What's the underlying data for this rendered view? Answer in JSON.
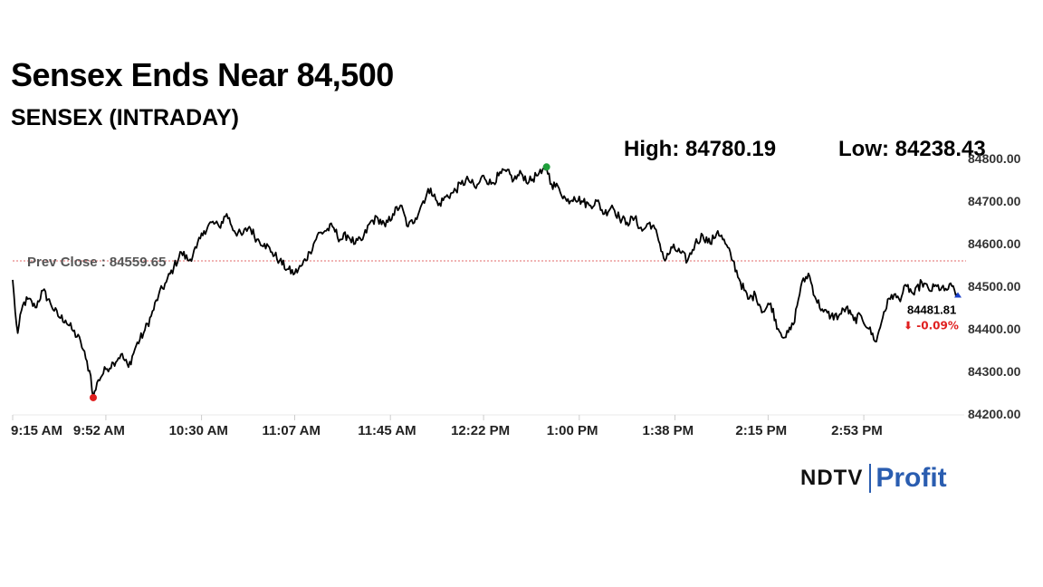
{
  "title": "Sensex Ends Near 84,500",
  "subtitle": "SENSEX (INTRADAY)",
  "high_text": "High: 84780.19",
  "low_text": "Low: 84238.43",
  "brand": {
    "ndtv": "NDTV",
    "profit": "Profit",
    "color": "#2a5db0"
  },
  "colors": {
    "line": "#000000",
    "prev_close_line": "#e06a6a",
    "high_marker": "#1e9e3a",
    "low_marker": "#e02020",
    "last_marker": "#1a3fc8",
    "change_negative": "#e02020"
  },
  "chart_data": {
    "type": "line",
    "title": "SENSEX (INTRADAY)",
    "ylim": [
      84200,
      84800
    ],
    "y_ticks": [
      84200,
      84300,
      84400,
      84500,
      84600,
      84700,
      84800
    ],
    "y_tick_labels": [
      "84200.00",
      "84300.00",
      "84400.00",
      "84500.00",
      "84600.00",
      "84700.00",
      "84800.00"
    ],
    "x_tick_labels": [
      "9:15 AM",
      "9:52 AM",
      "10:30 AM",
      "11:07 AM",
      "11:45 AM",
      "12:22 PM",
      "1:00 PM",
      "1:38 PM",
      "2:15 PM",
      "2:53 PM"
    ],
    "x_tick_minutes": [
      555,
      592,
      630,
      667,
      705,
      742,
      780,
      818,
      855,
      893
    ],
    "x_range_minutes": [
      555,
      930
    ],
    "prev_close": 84559.65,
    "prev_close_label": "Prev Close : 84559.65",
    "high": {
      "value": 84780.19,
      "minute": 767
    },
    "low": {
      "value": 84238.43,
      "minute": 587
    },
    "last": {
      "value": 84481.81,
      "minute": 930,
      "label": "84481.81",
      "change": "⬇ -0.09%"
    },
    "grid": false,
    "series": [
      {
        "minutes": [
          555,
          556,
          557,
          559,
          561,
          564,
          567,
          570,
          573,
          576,
          579,
          582,
          584,
          586,
          587,
          589,
          592,
          595,
          598,
          601,
          604,
          607,
          610,
          613,
          616,
          619,
          622,
          625,
          628,
          631,
          634,
          637,
          640,
          643,
          646,
          649,
          652,
          655,
          658,
          661,
          664,
          667,
          670,
          673,
          676,
          679,
          682,
          685,
          688,
          691,
          694,
          697,
          700,
          703,
          706,
          709,
          712,
          715,
          718,
          721,
          724,
          727,
          730,
          733,
          736,
          739,
          742,
          745,
          748,
          751,
          754,
          757,
          760,
          763,
          765,
          767,
          769,
          772,
          775,
          778,
          781,
          784,
          787,
          790,
          793,
          796,
          799,
          802,
          805,
          808,
          811,
          814,
          817,
          820,
          823,
          826,
          829,
          832,
          835,
          838,
          841,
          844,
          847,
          850,
          853,
          856,
          859,
          862,
          865,
          868,
          871,
          874,
          877,
          880,
          883,
          886,
          889,
          892,
          895,
          898,
          901,
          904,
          907,
          910,
          913,
          916,
          919,
          922,
          925,
          928,
          930
        ],
        "values": [
          84515,
          84440,
          84390,
          84455,
          84470,
          84450,
          84490,
          84460,
          84430,
          84420,
          84395,
          84370,
          84330,
          84290,
          84238,
          84280,
          84305,
          84320,
          84340,
          84310,
          84360,
          84390,
          84430,
          84480,
          84510,
          84545,
          84580,
          84560,
          84590,
          84630,
          84650,
          84640,
          84670,
          84630,
          84620,
          84640,
          84610,
          84600,
          84580,
          84560,
          84540,
          84530,
          84550,
          84580,
          84620,
          84630,
          84640,
          84610,
          84620,
          84600,
          84610,
          84650,
          84660,
          84640,
          84670,
          84690,
          84640,
          84660,
          84700,
          84730,
          84690,
          84710,
          84720,
          84740,
          84750,
          84730,
          84760,
          84740,
          84760,
          84770,
          84750,
          84765,
          84745,
          84760,
          84765,
          84780,
          84740,
          84730,
          84700,
          84710,
          84700,
          84690,
          84700,
          84670,
          84690,
          84660,
          84650,
          84660,
          84630,
          84650,
          84620,
          84560,
          84590,
          84580,
          84560,
          84600,
          84620,
          84600,
          84630,
          84600,
          84560,
          84510,
          84470,
          84480,
          84440,
          84460,
          84400,
          84380,
          84410,
          84500,
          84530,
          84470,
          84440,
          84430,
          84430,
          84450,
          84420,
          84430,
          84400,
          84370,
          84440,
          84480,
          84470,
          84500,
          84480,
          84510,
          84490,
          84500,
          84490,
          84500,
          84481.81
        ]
      }
    ]
  }
}
